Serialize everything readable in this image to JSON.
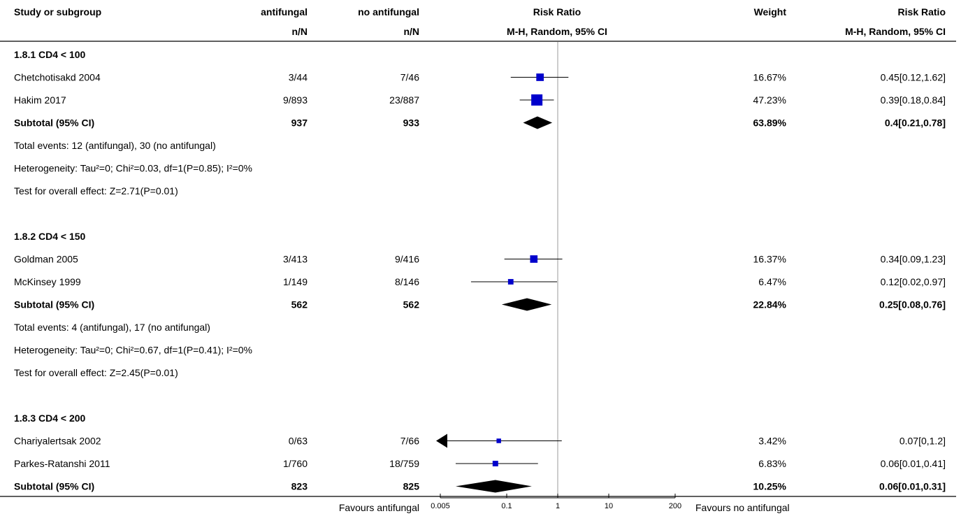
{
  "header": {
    "study_col": "Study or subgroup",
    "group1": "antifungal",
    "group1_sub": "n/N",
    "group2": "no antifungal",
    "group2_sub": "n/N",
    "effect": "Risk Ratio",
    "effect_sub": "M-H, Random, 95% CI",
    "weight": "Weight",
    "effect2": "Risk Ratio",
    "effect2_sub": "M-H, Random, 95% CI"
  },
  "colors": {
    "box": "#0000cc",
    "diamond": "#000000",
    "line": "#000000",
    "ref_line": "#999999"
  },
  "chart_data": {
    "type": "forest",
    "scale": "log",
    "xlim": [
      0.005,
      200
    ],
    "ticks": [
      {
        "value": 0.005,
        "label": "0.005"
      },
      {
        "value": 0.1,
        "label": "0.1"
      },
      {
        "value": 1,
        "label": "1"
      },
      {
        "value": 10,
        "label": "10"
      },
      {
        "value": 200,
        "label": "200"
      }
    ],
    "reference": 1,
    "favours_left": "Favours antifungal",
    "favours_right": "Favours no antifungal",
    "subgroups": [
      {
        "title": "1.8.1 CD4 < 100",
        "studies": [
          {
            "name": "Chetchotisakd 2004",
            "g1": "3/44",
            "g2": "7/46",
            "weight": 16.67,
            "weight_label": "16.67%",
            "rr": 0.45,
            "lo": 0.12,
            "hi": 1.62,
            "ci_label": "0.45[0.12,1.62]"
          },
          {
            "name": "Hakim 2017",
            "g1": "9/893",
            "g2": "23/887",
            "weight": 47.23,
            "weight_label": "47.23%",
            "rr": 0.39,
            "lo": 0.18,
            "hi": 0.84,
            "ci_label": "0.39[0.18,0.84]"
          }
        ],
        "subtotal": {
          "label": "Subtotal (95% CI)",
          "g1": "937",
          "g2": "933",
          "weight_label": "63.89%",
          "rr": 0.4,
          "lo": 0.21,
          "hi": 0.78,
          "ci_label": "0.4[0.21,0.78]"
        },
        "notes": [
          "Total events: 12 (antifungal), 30 (no antifungal)",
          "Heterogeneity: Tau²=0; Chi²=0.03, df=1(P=0.85); I²=0%",
          "Test for overall effect: Z=2.71(P=0.01)"
        ]
      },
      {
        "title": "1.8.2 CD4 < 150",
        "studies": [
          {
            "name": "Goldman 2005",
            "g1": "3/413",
            "g2": "9/416",
            "weight": 16.37,
            "weight_label": "16.37%",
            "rr": 0.34,
            "lo": 0.09,
            "hi": 1.23,
            "ci_label": "0.34[0.09,1.23]"
          },
          {
            "name": "McKinsey 1999",
            "g1": "1/149",
            "g2": "8/146",
            "weight": 6.47,
            "weight_label": "6.47%",
            "rr": 0.12,
            "lo": 0.02,
            "hi": 0.97,
            "ci_label": "0.12[0.02,0.97]"
          }
        ],
        "subtotal": {
          "label": "Subtotal (95% CI)",
          "g1": "562",
          "g2": "562",
          "weight_label": "22.84%",
          "rr": 0.25,
          "lo": 0.08,
          "hi": 0.76,
          "ci_label": "0.25[0.08,0.76]"
        },
        "notes": [
          "Total events: 4 (antifungal), 17 (no antifungal)",
          "Heterogeneity: Tau²=0; Chi²=0.67, df=1(P=0.41); I²=0%",
          "Test for overall effect: Z=2.45(P=0.01)"
        ]
      },
      {
        "title": "1.8.3 CD4 < 200",
        "studies": [
          {
            "name": "Chariyalertsak 2002",
            "g1": "0/63",
            "g2": "7/66",
            "weight": 3.42,
            "weight_label": "3.42%",
            "rr": 0.07,
            "lo": 0,
            "hi": 1.2,
            "ci_label": "0.07[0,1.2]"
          },
          {
            "name": "Parkes-Ratanshi 2011",
            "g1": "1/760",
            "g2": "18/759",
            "weight": 6.83,
            "weight_label": "6.83%",
            "rr": 0.06,
            "lo": 0.01,
            "hi": 0.41,
            "ci_label": "0.06[0.01,0.41]"
          }
        ],
        "subtotal": {
          "label": "Subtotal (95% CI)",
          "g1": "823",
          "g2": "825",
          "weight_label": "10.25%",
          "rr": 0.06,
          "lo": 0.01,
          "hi": 0.31,
          "ci_label": "0.06[0.01,0.31]"
        },
        "notes": []
      }
    ]
  }
}
